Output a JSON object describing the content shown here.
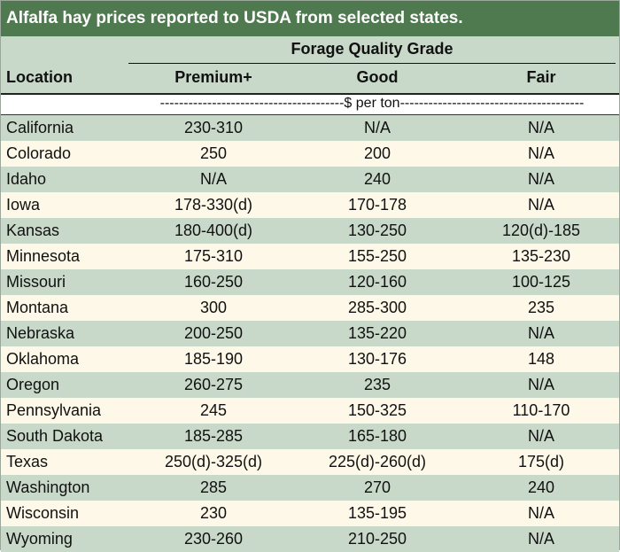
{
  "title": "Alfalfa hay prices reported to USDA from selected states.",
  "header": {
    "group_label": "Forage Quality Grade",
    "location_label": "Location",
    "columns": [
      "Premium+",
      "Good",
      "Fair"
    ],
    "unit_line": "---------------------------------------$ per ton---------------------------------------"
  },
  "rows": [
    {
      "location": "California",
      "premium": "230-310",
      "good": "N/A",
      "fair": "N/A"
    },
    {
      "location": "Colorado",
      "premium": "250",
      "good": "200",
      "fair": "N/A"
    },
    {
      "location": "Idaho",
      "premium": "N/A",
      "good": "240",
      "fair": "N/A"
    },
    {
      "location": "Iowa",
      "premium": "178-330(d)",
      "good": "170-178",
      "fair": "N/A"
    },
    {
      "location": "Kansas",
      "premium": "180-400(d)",
      "good": "130-250",
      "fair": "120(d)-185"
    },
    {
      "location": "Minnesota",
      "premium": "175-310",
      "good": "155-250",
      "fair": "135-230"
    },
    {
      "location": "Missouri",
      "premium": "160-250",
      "good": "120-160",
      "fair": "100-125"
    },
    {
      "location": "Montana",
      "premium": "300",
      "good": "285-300",
      "fair": "235"
    },
    {
      "location": "Nebraska",
      "premium": "200-250",
      "good": "135-220",
      "fair": "N/A"
    },
    {
      "location": "Oklahoma",
      "premium": "185-190",
      "good": "130-176",
      "fair": "148"
    },
    {
      "location": "Oregon",
      "premium": "260-275",
      "good": "235",
      "fair": "N/A"
    },
    {
      "location": "Pennsylvania",
      "premium": "245",
      "good": "150-325",
      "fair": "110-170"
    },
    {
      "location": "South Dakota",
      "premium": "185-285",
      "good": "165-180",
      "fair": "N/A"
    },
    {
      "location": "Texas",
      "premium": "250(d)-325(d)",
      "good": "225(d)-260(d)",
      "fair": "175(d)"
    },
    {
      "location": "Washington",
      "premium": "285",
      "good": "270",
      "fair": "240"
    },
    {
      "location": "Wisconsin",
      "premium": "230",
      "good": "135-195",
      "fair": "N/A"
    },
    {
      "location": "Wyoming",
      "premium": "230-260",
      "good": "210-250",
      "fair": "N/A"
    }
  ]
}
